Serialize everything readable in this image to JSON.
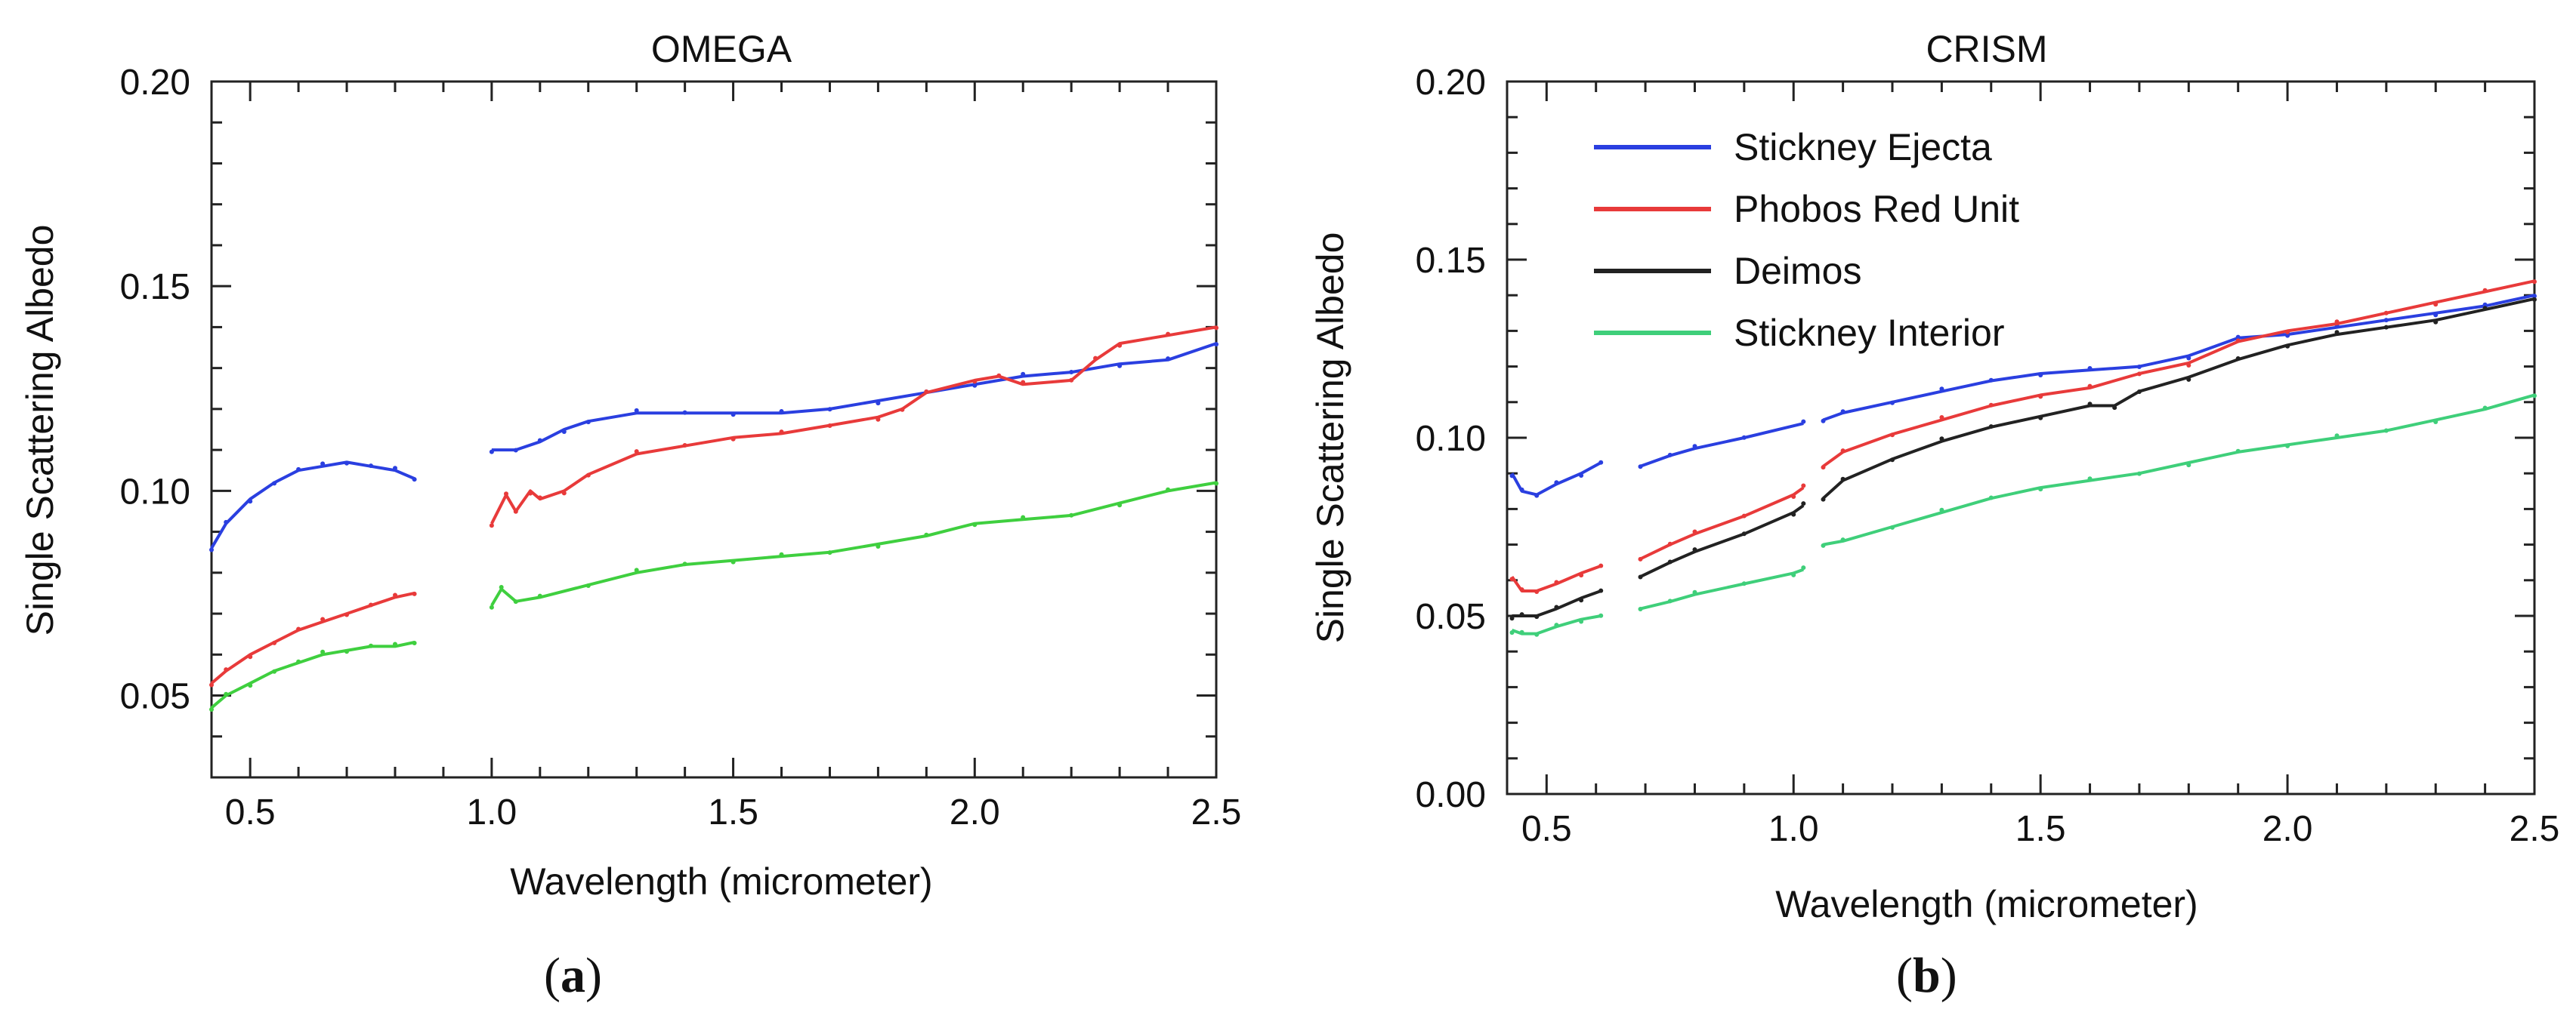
{
  "chart_data": [
    {
      "type": "line",
      "title": "OMEGA",
      "xlabel": "Wavelength (micrometer)",
      "ylabel": "Single Scattering Albedo",
      "xlim": [
        0.42,
        2.5
      ],
      "ylim": [
        0.03,
        0.2
      ],
      "xticks": [
        0.5,
        1.0,
        1.5,
        2.0,
        2.5
      ],
      "xtick_labels": [
        "0.5",
        "1.0",
        "1.5",
        "2.0",
        "2.5"
      ],
      "yticks": [
        0.05,
        0.1,
        0.15,
        0.2
      ],
      "ytick_labels": [
        "0.05",
        "0.10",
        "0.15",
        "0.20"
      ],
      "legend": "none",
      "series": [
        {
          "color": "#2a3fe0",
          "segments": [
            [
              [
                0.42,
                0.086
              ],
              [
                0.45,
                0.092
              ],
              [
                0.5,
                0.098
              ],
              [
                0.55,
                0.102
              ],
              [
                0.6,
                0.105
              ],
              [
                0.65,
                0.106
              ],
              [
                0.7,
                0.107
              ],
              [
                0.75,
                0.106
              ],
              [
                0.8,
                0.105
              ],
              [
                0.84,
                0.103
              ]
            ],
            [
              [
                1.0,
                0.11
              ],
              [
                1.05,
                0.11
              ],
              [
                1.1,
                0.112
              ],
              [
                1.15,
                0.115
              ],
              [
                1.2,
                0.117
              ],
              [
                1.3,
                0.119
              ],
              [
                1.4,
                0.119
              ],
              [
                1.5,
                0.119
              ],
              [
                1.6,
                0.119
              ],
              [
                1.7,
                0.12
              ],
              [
                1.8,
                0.122
              ],
              [
                1.9,
                0.124
              ],
              [
                2.0,
                0.126
              ],
              [
                2.1,
                0.128
              ],
              [
                2.2,
                0.129
              ],
              [
                2.3,
                0.131
              ],
              [
                2.4,
                0.132
              ],
              [
                2.5,
                0.136
              ]
            ]
          ]
        },
        {
          "color": "#e83a3a",
          "segments": [
            [
              [
                0.42,
                0.053
              ],
              [
                0.45,
                0.056
              ],
              [
                0.5,
                0.06
              ],
              [
                0.55,
                0.063
              ],
              [
                0.6,
                0.066
              ],
              [
                0.65,
                0.068
              ],
              [
                0.7,
                0.07
              ],
              [
                0.75,
                0.072
              ],
              [
                0.8,
                0.074
              ],
              [
                0.84,
                0.075
              ]
            ],
            [
              [
                1.0,
                0.092
              ],
              [
                1.03,
                0.099
              ],
              [
                1.05,
                0.095
              ],
              [
                1.08,
                0.1
              ],
              [
                1.1,
                0.098
              ],
              [
                1.15,
                0.1
              ],
              [
                1.2,
                0.104
              ],
              [
                1.3,
                0.109
              ],
              [
                1.4,
                0.111
              ],
              [
                1.5,
                0.113
              ],
              [
                1.6,
                0.114
              ],
              [
                1.7,
                0.116
              ],
              [
                1.8,
                0.118
              ],
              [
                1.85,
                0.12
              ],
              [
                1.9,
                0.124
              ],
              [
                2.0,
                0.127
              ],
              [
                2.05,
                0.128
              ],
              [
                2.1,
                0.126
              ],
              [
                2.2,
                0.127
              ],
              [
                2.25,
                0.132
              ],
              [
                2.3,
                0.136
              ],
              [
                2.4,
                0.138
              ],
              [
                2.5,
                0.14
              ]
            ]
          ]
        },
        {
          "color": "#3fcf3f",
          "segments": [
            [
              [
                0.42,
                0.047
              ],
              [
                0.45,
                0.05
              ],
              [
                0.5,
                0.053
              ],
              [
                0.55,
                0.056
              ],
              [
                0.6,
                0.058
              ],
              [
                0.65,
                0.06
              ],
              [
                0.7,
                0.061
              ],
              [
                0.75,
                0.062
              ],
              [
                0.8,
                0.062
              ],
              [
                0.84,
                0.063
              ]
            ],
            [
              [
                1.0,
                0.072
              ],
              [
                1.02,
                0.076
              ],
              [
                1.05,
                0.073
              ],
              [
                1.1,
                0.074
              ],
              [
                1.2,
                0.077
              ],
              [
                1.3,
                0.08
              ],
              [
                1.4,
                0.082
              ],
              [
                1.5,
                0.083
              ],
              [
                1.6,
                0.084
              ],
              [
                1.7,
                0.085
              ],
              [
                1.8,
                0.087
              ],
              [
                1.9,
                0.089
              ],
              [
                2.0,
                0.092
              ],
              [
                2.1,
                0.093
              ],
              [
                2.2,
                0.094
              ],
              [
                2.3,
                0.097
              ],
              [
                2.4,
                0.1
              ],
              [
                2.5,
                0.102
              ]
            ]
          ]
        }
      ]
    },
    {
      "type": "line",
      "title": "CRISM",
      "xlabel": "Wavelength (micrometer)",
      "ylabel": "Single Scattering Albedo",
      "xlim": [
        0.42,
        2.5
      ],
      "ylim": [
        0.0,
        0.2
      ],
      "xticks": [
        0.5,
        1.0,
        1.5,
        2.0,
        2.5
      ],
      "xtick_labels": [
        "0.5",
        "1.0",
        "1.5",
        "2.0",
        "2.5"
      ],
      "yticks": [
        0.0,
        0.05,
        0.1,
        0.15,
        0.2
      ],
      "ytick_labels": [
        "0.00",
        "0.05",
        "0.10",
        "0.15",
        "0.20"
      ],
      "legend": "top-left",
      "series": [
        {
          "name": "Stickney Ejecta",
          "color": "#2a3fe0",
          "segments": [
            [
              [
                0.43,
                0.09
              ],
              [
                0.45,
                0.085
              ],
              [
                0.48,
                0.084
              ],
              [
                0.52,
                0.087
              ],
              [
                0.57,
                0.09
              ],
              [
                0.61,
                0.093
              ]
            ],
            [
              [
                0.69,
                0.092
              ],
              [
                0.75,
                0.095
              ],
              [
                0.8,
                0.097
              ],
              [
                0.9,
                0.1
              ],
              [
                1.02,
                0.104
              ]
            ],
            [
              [
                1.06,
                0.105
              ],
              [
                1.1,
                0.107
              ],
              [
                1.2,
                0.11
              ],
              [
                1.3,
                0.113
              ],
              [
                1.4,
                0.116
              ],
              [
                1.5,
                0.118
              ],
              [
                1.6,
                0.119
              ],
              [
                1.7,
                0.12
              ],
              [
                1.8,
                0.123
              ],
              [
                1.9,
                0.128
              ],
              [
                2.0,
                0.129
              ],
              [
                2.1,
                0.131
              ],
              [
                2.2,
                0.133
              ],
              [
                2.3,
                0.135
              ],
              [
                2.4,
                0.137
              ],
              [
                2.5,
                0.14
              ]
            ]
          ]
        },
        {
          "name": "Phobos Red Unit",
          "color": "#e83a3a",
          "segments": [
            [
              [
                0.43,
                0.061
              ],
              [
                0.45,
                0.057
              ],
              [
                0.48,
                0.057
              ],
              [
                0.52,
                0.059
              ],
              [
                0.57,
                0.062
              ],
              [
                0.61,
                0.064
              ]
            ],
            [
              [
                0.69,
                0.066
              ],
              [
                0.75,
                0.07
              ],
              [
                0.8,
                0.073
              ],
              [
                0.9,
                0.078
              ],
              [
                1.0,
                0.084
              ],
              [
                1.02,
                0.086
              ]
            ],
            [
              [
                1.06,
                0.092
              ],
              [
                1.1,
                0.096
              ],
              [
                1.2,
                0.101
              ],
              [
                1.3,
                0.105
              ],
              [
                1.4,
                0.109
              ],
              [
                1.5,
                0.112
              ],
              [
                1.6,
                0.114
              ],
              [
                1.7,
                0.118
              ],
              [
                1.8,
                0.121
              ],
              [
                1.9,
                0.127
              ],
              [
                2.0,
                0.13
              ],
              [
                2.1,
                0.132
              ],
              [
                2.2,
                0.135
              ],
              [
                2.3,
                0.138
              ],
              [
                2.4,
                0.141
              ],
              [
                2.5,
                0.144
              ]
            ]
          ]
        },
        {
          "name": "Deimos",
          "color": "#222222",
          "segments": [
            [
              [
                0.43,
                0.05
              ],
              [
                0.45,
                0.05
              ],
              [
                0.48,
                0.05
              ],
              [
                0.52,
                0.052
              ],
              [
                0.57,
                0.055
              ],
              [
                0.61,
                0.057
              ]
            ],
            [
              [
                0.69,
                0.061
              ],
              [
                0.75,
                0.065
              ],
              [
                0.8,
                0.068
              ],
              [
                0.9,
                0.073
              ],
              [
                1.0,
                0.079
              ],
              [
                1.02,
                0.081
              ]
            ],
            [
              [
                1.06,
                0.083
              ],
              [
                1.1,
                0.088
              ],
              [
                1.2,
                0.094
              ],
              [
                1.3,
                0.099
              ],
              [
                1.4,
                0.103
              ],
              [
                1.5,
                0.106
              ],
              [
                1.6,
                0.109
              ],
              [
                1.65,
                0.109
              ],
              [
                1.7,
                0.113
              ],
              [
                1.8,
                0.117
              ],
              [
                1.9,
                0.122
              ],
              [
                2.0,
                0.126
              ],
              [
                2.1,
                0.129
              ],
              [
                2.2,
                0.131
              ],
              [
                2.3,
                0.133
              ],
              [
                2.4,
                0.136
              ],
              [
                2.5,
                0.139
              ]
            ]
          ]
        },
        {
          "name": "Stickney Interior",
          "color": "#3fcf7a",
          "segments": [
            [
              [
                0.43,
                0.046
              ],
              [
                0.45,
                0.045
              ],
              [
                0.48,
                0.045
              ],
              [
                0.52,
                0.047
              ],
              [
                0.57,
                0.049
              ],
              [
                0.61,
                0.05
              ]
            ],
            [
              [
                0.69,
                0.052
              ],
              [
                0.75,
                0.054
              ],
              [
                0.8,
                0.056
              ],
              [
                0.9,
                0.059
              ],
              [
                1.0,
                0.062
              ],
              [
                1.02,
                0.063
              ]
            ],
            [
              [
                1.06,
                0.07
              ],
              [
                1.1,
                0.071
              ],
              [
                1.2,
                0.075
              ],
              [
                1.3,
                0.079
              ],
              [
                1.4,
                0.083
              ],
              [
                1.5,
                0.086
              ],
              [
                1.6,
                0.088
              ],
              [
                1.7,
                0.09
              ],
              [
                1.8,
                0.093
              ],
              [
                1.9,
                0.096
              ],
              [
                2.0,
                0.098
              ],
              [
                2.1,
                0.1
              ],
              [
                2.2,
                0.102
              ],
              [
                2.3,
                0.105
              ],
              [
                2.4,
                0.108
              ],
              [
                2.5,
                0.112
              ]
            ]
          ]
        }
      ]
    }
  ],
  "captions": {
    "a_open": "(",
    "a_letter": "a",
    "a_close": ")",
    "b_open": "(",
    "b_letter": "b",
    "b_close": ")"
  }
}
